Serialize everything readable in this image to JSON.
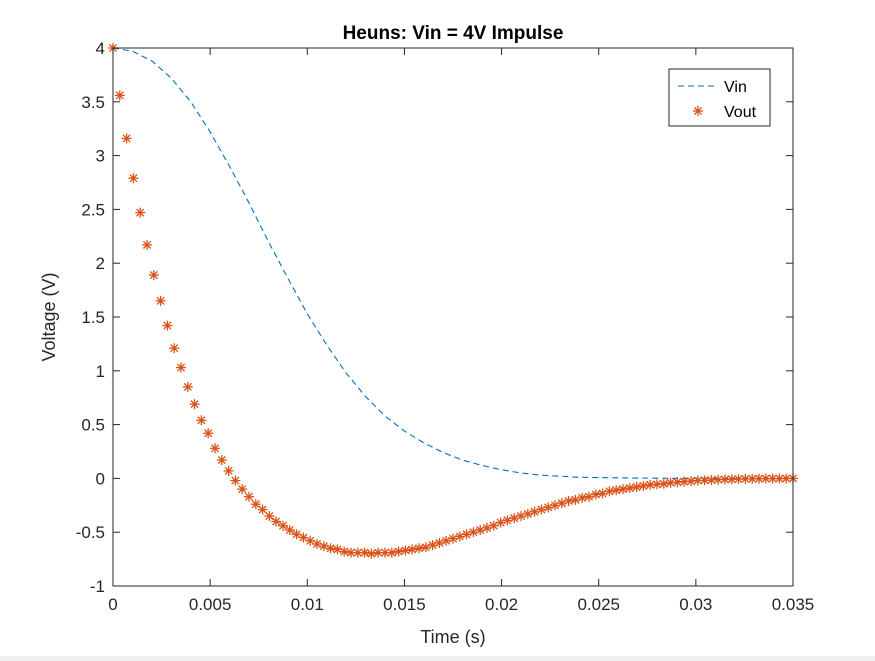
{
  "figure": {
    "title": "Heuns: Vin = 4V Impulse",
    "xlabel": "Time (s)",
    "ylabel": "Voltage (V)"
  },
  "legend": {
    "placement": "top-right",
    "entries": [
      {
        "label": "Vin",
        "style": "dashed-line",
        "color": "#0072bd"
      },
      {
        "label": "Vout",
        "style": "asterisk-markers",
        "color": "#d95319"
      }
    ]
  },
  "chart_data": {
    "type": "line",
    "title": "Heuns: Vin = 4V Impulse",
    "xlabel": "Time (s)",
    "ylabel": "Voltage (V)",
    "xlim": [
      0,
      0.035
    ],
    "ylim": [
      -1,
      4
    ],
    "xticks": [
      0,
      0.005,
      0.01,
      0.015,
      0.02,
      0.025,
      0.03,
      0.035
    ],
    "xtick_labels": [
      "0",
      "0.005",
      "0.01",
      "0.015",
      "0.02",
      "0.025",
      "0.03",
      "0.035"
    ],
    "yticks": [
      -1,
      -0.5,
      0,
      0.5,
      1,
      1.5,
      2,
      2.5,
      3,
      3.5,
      4
    ],
    "ytick_labels": [
      "-1",
      "-0.5",
      "0",
      "0.5",
      "1",
      "1.5",
      "2",
      "2.5",
      "3",
      "3.5",
      "4"
    ],
    "grid": false,
    "series": [
      {
        "name": "Vin",
        "style": "dashed-line",
        "color": "#0072bd",
        "x": [
          0,
          0.001,
          0.002,
          0.003,
          0.004,
          0.005,
          0.006,
          0.007,
          0.008,
          0.009,
          0.01,
          0.011,
          0.012,
          0.013,
          0.014,
          0.015,
          0.016,
          0.017,
          0.018,
          0.019,
          0.02,
          0.021,
          0.022,
          0.023,
          0.024,
          0.025,
          0.026,
          0.027,
          0.028,
          0.029,
          0.03,
          0.031,
          0.032,
          0.033,
          0.034,
          0.035
        ],
        "y": [
          4.0,
          3.97,
          3.88,
          3.72,
          3.5,
          3.22,
          2.9,
          2.56,
          2.2,
          1.86,
          1.53,
          1.24,
          0.98,
          0.76,
          0.58,
          0.44,
          0.33,
          0.24,
          0.17,
          0.12,
          0.08,
          0.05,
          0.03,
          0.02,
          0.01,
          0.008,
          0.005,
          0.003,
          0.002,
          0.001,
          0.001,
          0.0,
          0.0,
          0.0,
          0.0,
          0.0
        ]
      },
      {
        "name": "Vout",
        "style": "asterisk-markers",
        "color": "#d95319",
        "x": [
          0,
          0.00035,
          0.0007,
          0.00105,
          0.0014,
          0.00175,
          0.0021,
          0.00245,
          0.0028,
          0.00315,
          0.0035,
          0.00385,
          0.0042,
          0.00455,
          0.0049,
          0.00525,
          0.0056,
          0.00595,
          0.0063,
          0.00665,
          0.007,
          0.00735,
          0.0077,
          0.00805,
          0.0084,
          0.00875,
          0.0091,
          0.00945,
          0.0098,
          0.01015,
          0.0105,
          0.01085,
          0.0112,
          0.01155,
          0.0119,
          0.01225,
          0.0126,
          0.01295,
          0.0133,
          0.01365,
          0.014,
          0.01435,
          0.0147,
          0.01505,
          0.0154,
          0.01575,
          0.0161,
          0.01645,
          0.0168,
          0.01715,
          0.0175,
          0.01785,
          0.0182,
          0.01855,
          0.0189,
          0.01925,
          0.0196,
          0.01995,
          0.0203,
          0.02065,
          0.021,
          0.02135,
          0.0217,
          0.02205,
          0.0224,
          0.02275,
          0.0231,
          0.02345,
          0.0238,
          0.02415,
          0.0245,
          0.02485,
          0.0252,
          0.02555,
          0.0259,
          0.02625,
          0.0266,
          0.02695,
          0.0273,
          0.02765,
          0.028,
          0.02835,
          0.0287,
          0.02905,
          0.0294,
          0.02975,
          0.0301,
          0.03045,
          0.0308,
          0.03115,
          0.0315,
          0.03185,
          0.0322,
          0.03255,
          0.0329,
          0.03325,
          0.0336,
          0.03395,
          0.0343,
          0.03465,
          0.035
        ],
        "y": [
          4.0,
          3.56,
          3.16,
          2.79,
          2.47,
          2.17,
          1.89,
          1.65,
          1.42,
          1.21,
          1.03,
          0.85,
          0.69,
          0.54,
          0.42,
          0.28,
          0.17,
          0.07,
          -0.02,
          -0.1,
          -0.17,
          -0.24,
          -0.29,
          -0.35,
          -0.4,
          -0.44,
          -0.48,
          -0.52,
          -0.55,
          -0.58,
          -0.61,
          -0.63,
          -0.65,
          -0.66,
          -0.68,
          -0.69,
          -0.69,
          -0.69,
          -0.7,
          -0.69,
          -0.69,
          -0.69,
          -0.68,
          -0.67,
          -0.66,
          -0.65,
          -0.64,
          -0.62,
          -0.6,
          -0.58,
          -0.56,
          -0.54,
          -0.52,
          -0.5,
          -0.48,
          -0.46,
          -0.44,
          -0.41,
          -0.39,
          -0.37,
          -0.35,
          -0.33,
          -0.31,
          -0.29,
          -0.27,
          -0.25,
          -0.23,
          -0.21,
          -0.2,
          -0.18,
          -0.17,
          -0.15,
          -0.14,
          -0.12,
          -0.11,
          -0.1,
          -0.09,
          -0.08,
          -0.07,
          -0.06,
          -0.055,
          -0.05,
          -0.04,
          -0.035,
          -0.03,
          -0.025,
          -0.02,
          -0.018,
          -0.015,
          -0.012,
          -0.01,
          -0.008,
          -0.006,
          -0.005,
          -0.004,
          -0.003,
          -0.002,
          -0.002,
          -0.001,
          -0.001,
          0.0
        ]
      }
    ]
  }
}
